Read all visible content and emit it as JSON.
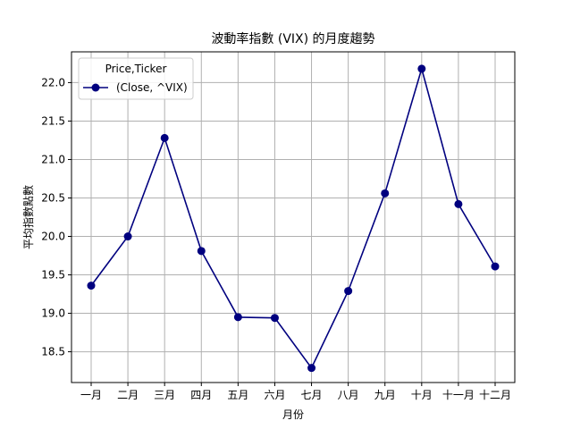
{
  "chart_data": {
    "type": "line",
    "title": "波動率指數 (VIX) 的月度趨勢",
    "xlabel": "月份",
    "ylabel": "平均指數點數",
    "categories": [
      "一月",
      "二月",
      "三月",
      "四月",
      "五月",
      "六月",
      "七月",
      "八月",
      "九月",
      "十月",
      "十一月",
      "十二月"
    ],
    "series": [
      {
        "name": "(Close, ^VIX)",
        "values": [
          19.36,
          20.0,
          21.28,
          19.81,
          18.95,
          18.94,
          18.29,
          19.29,
          20.56,
          22.18,
          20.42,
          19.61
        ]
      }
    ],
    "ylim": [
      18.1,
      22.4
    ],
    "yticks": [
      "18.5",
      "19.0",
      "19.5",
      "20.0",
      "20.5",
      "21.0",
      "21.5",
      "22.0"
    ],
    "grid": true,
    "legend": {
      "title": "Price,Ticker",
      "placement": "top-left"
    },
    "colors": {
      "line": "#00007f",
      "grid": "#b0b0b0"
    }
  }
}
